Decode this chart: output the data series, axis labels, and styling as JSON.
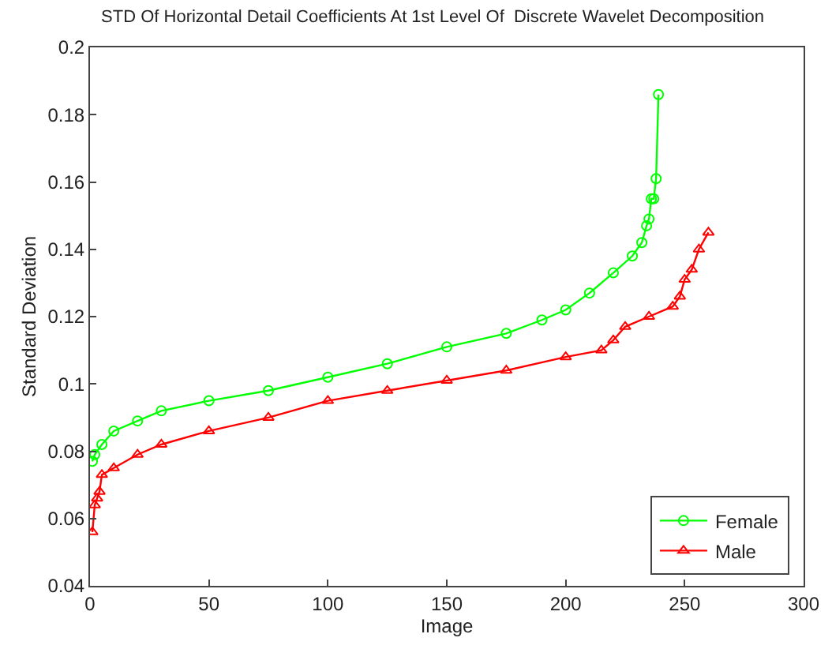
{
  "chart_data": {
    "type": "line",
    "title": "STD Of Horizontal Detail Coefficients At 1st Level Of  Discrete Wavelet Decomposition",
    "xlabel": "Image",
    "ylabel": "Standard Deviation",
    "xlim": [
      0,
      300
    ],
    "xticks": [
      0,
      50,
      100,
      150,
      200,
      250,
      300
    ],
    "ylim": [
      0.04,
      0.2
    ],
    "yticks": [
      0.04,
      0.06,
      0.08,
      0.1,
      0.12,
      0.14,
      0.16,
      0.18,
      0.2
    ],
    "grid": false,
    "legend": "bottom right",
    "line_style": "solid",
    "series": [
      {
        "name": "Female",
        "color": "#00ff00",
        "marker": "circle",
        "x": [
          1,
          2,
          5,
          10,
          20,
          30,
          50,
          75,
          100,
          125,
          150,
          175,
          190,
          200,
          210,
          220,
          228,
          232,
          234,
          235,
          236,
          237,
          238,
          239
        ],
        "values": [
          0.077,
          0.079,
          0.082,
          0.086,
          0.089,
          0.092,
          0.095,
          0.098,
          0.102,
          0.106,
          0.111,
          0.115,
          0.119,
          0.122,
          0.127,
          0.133,
          0.138,
          0.142,
          0.147,
          0.149,
          0.155,
          0.155,
          0.161,
          0.186
        ]
      },
      {
        "name": "Male",
        "color": "#ff0000",
        "marker": "triangle",
        "x": [
          1,
          2,
          3,
          4,
          5,
          10,
          20,
          30,
          50,
          75,
          100,
          125,
          150,
          175,
          200,
          215,
          220,
          225,
          235,
          245,
          248,
          250,
          253,
          256,
          260
        ],
        "values": [
          0.056,
          0.064,
          0.066,
          0.068,
          0.073,
          0.075,
          0.079,
          0.082,
          0.086,
          0.09,
          0.095,
          0.098,
          0.101,
          0.104,
          0.108,
          0.11,
          0.113,
          0.117,
          0.12,
          0.123,
          0.126,
          0.131,
          0.134,
          0.14,
          0.145
        ]
      }
    ]
  }
}
